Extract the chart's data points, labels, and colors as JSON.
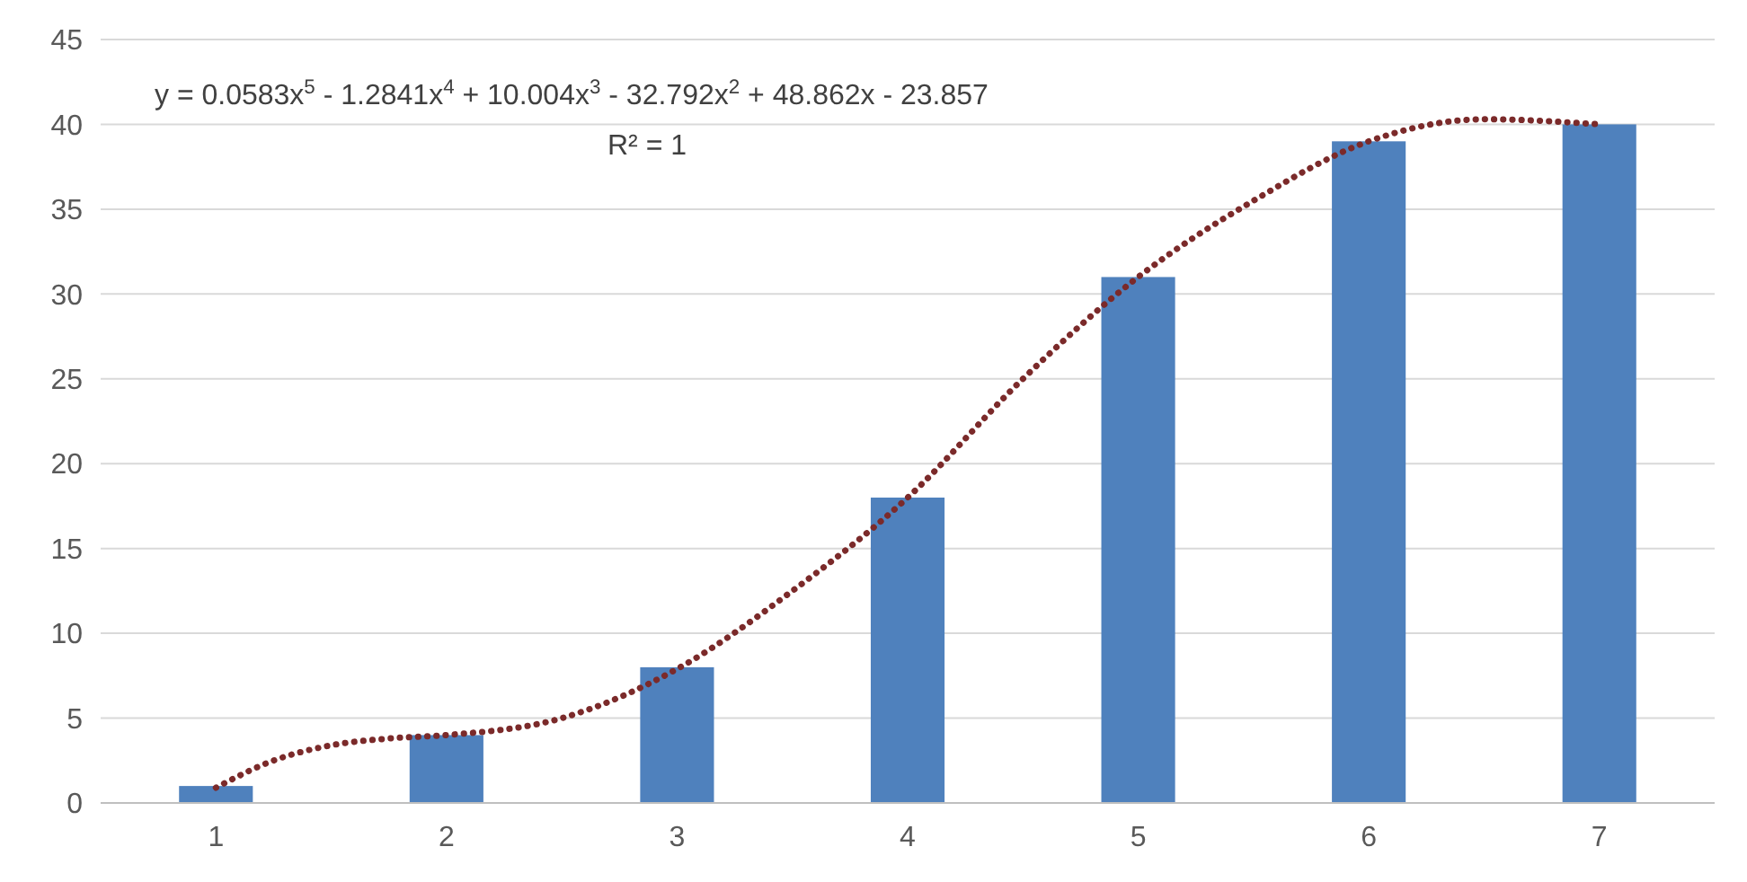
{
  "chart_data": {
    "type": "bar",
    "x": [
      1,
      2,
      3,
      4,
      5,
      6,
      7
    ],
    "xlim": [
      0.5,
      7.5
    ],
    "xticks": [
      1,
      2,
      3,
      4,
      5,
      6,
      7
    ],
    "ylim": [
      0,
      45
    ],
    "yticks": [
      0,
      5,
      10,
      15,
      20,
      25,
      30,
      35,
      40,
      45
    ],
    "grid": "y",
    "series": [
      {
        "color": "#4f81bd",
        "values": [
          1,
          4,
          8,
          18,
          31,
          39,
          40
        ]
      },
      {
        "type": "line",
        "color": "#7b2a2a",
        "line_style": "dotted",
        "marker": "none",
        "x": [
          1,
          1.25,
          1.5,
          1.75,
          2,
          2.5,
          3,
          3.5,
          4,
          4.5,
          5,
          5.5,
          6,
          6.5,
          7
        ],
        "values": [
          0.9,
          2.5,
          3.4,
          3.8,
          4,
          5,
          7.9,
          12.5,
          18,
          25,
          31,
          35.5,
          39,
          40.3,
          40
        ]
      }
    ],
    "annotations": [
      "y = 0.0583x$^{5}$ - 1.2841x$^{4}$ + 10.004x$^{3}$ - 32.792x$^{2}$ + 48.862x - 23.857",
      "R² = 1"
    ]
  }
}
